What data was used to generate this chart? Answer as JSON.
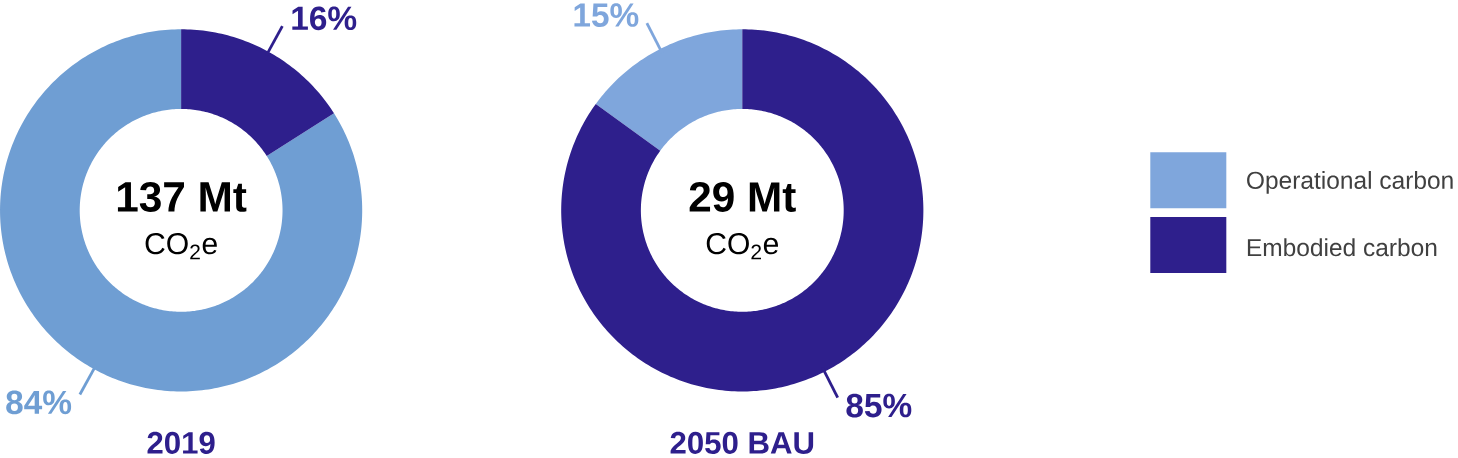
{
  "chart_data": [
    {
      "type": "donut",
      "title": "2019",
      "categories": [
        null,
        null
      ],
      "values": [
        84,
        16
      ],
      "colors": [
        "#6f9ed3",
        "#2e1f8c"
      ],
      "value_labels": [
        "84%",
        "16%"
      ],
      "annotations": [
        "137 Mt",
        "CO$_{2}$e"
      ],
      "legend": false
    },
    {
      "type": "donut",
      "title": "2050 BAU",
      "categories": [
        "Operational carbon",
        "Embodied carbon"
      ],
      "values": [
        15,
        85
      ],
      "colors": [
        "#7fa6dc",
        "#2e1f8c"
      ],
      "value_labels": [
        "15%",
        "85%"
      ],
      "annotations": [
        "29 Mt",
        "CO$_{2}$e"
      ],
      "legend": "right"
    }
  ]
}
